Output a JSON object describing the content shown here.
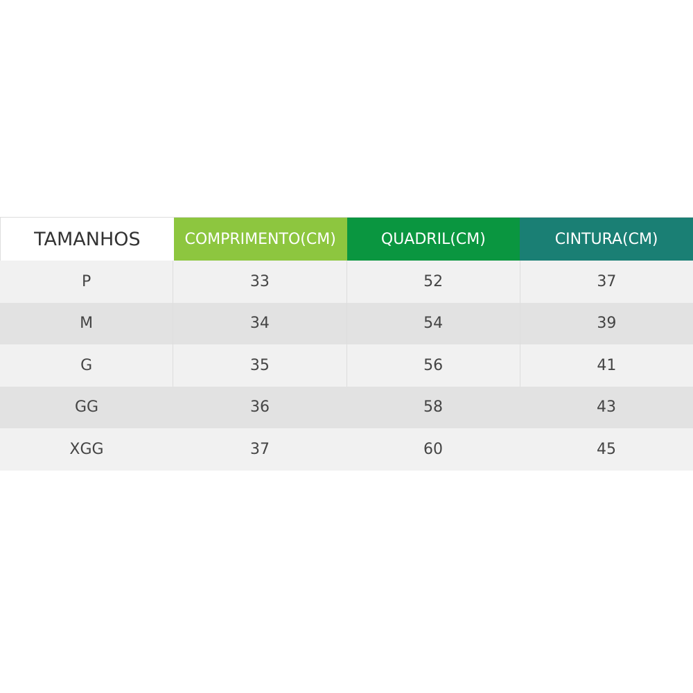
{
  "table": {
    "header": [
      "TAMANHOS",
      "COMPRIMENTO(CM)",
      "QUADRIL(CM)",
      "CINTURA(CM)"
    ],
    "rows": [
      [
        "P",
        33,
        52,
        37
      ],
      [
        "M",
        34,
        54,
        39
      ],
      [
        "G",
        35,
        56,
        41
      ],
      [
        "GG",
        36,
        58,
        43
      ],
      [
        "XGG",
        37,
        60,
        45
      ]
    ]
  }
}
